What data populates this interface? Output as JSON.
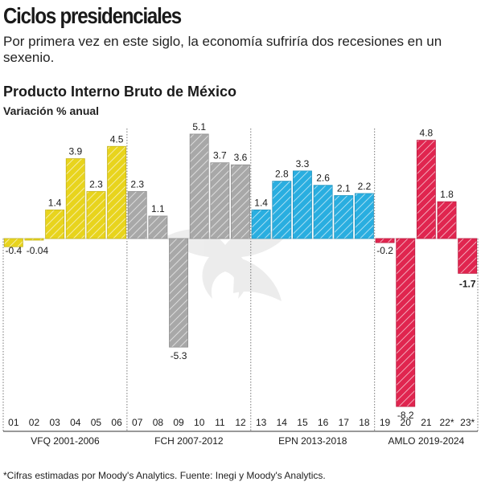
{
  "header": {
    "headline": "Ciclos presidenciales",
    "deck": "Por primera vez en este siglo, la economía sufriría dos recesiones en un sexenio."
  },
  "chart_data": {
    "type": "bar",
    "title": "Producto Interno Bruto de México",
    "subtitle": "Variación % anual",
    "categories": [
      "01",
      "02",
      "03",
      "04",
      "05",
      "06",
      "07",
      "08",
      "09",
      "10",
      "11",
      "12",
      "13",
      "14",
      "15",
      "16",
      "17",
      "18",
      "19",
      "20",
      "21",
      "22*",
      "23*"
    ],
    "values": [
      -0.4,
      -0.04,
      1.4,
      3.9,
      2.3,
      4.5,
      2.3,
      1.1,
      -5.3,
      5.1,
      3.7,
      3.6,
      1.4,
      2.8,
      3.3,
      2.6,
      2.1,
      2.2,
      -0.2,
      -8.2,
      4.8,
      1.8,
      -1.7
    ],
    "value_labels": [
      "-0.4",
      "-0.04",
      "1.4",
      "3.9",
      "2.3",
      "4.5",
      "2.3",
      "1.1",
      "-5.3",
      "5.1",
      "3.7",
      "3.6",
      "1.4",
      "2.8",
      "3.3",
      "2.6",
      "2.1",
      "2.2",
      "-0.2",
      "-8.2",
      "4.8",
      "1.8",
      "-1.7"
    ],
    "bold_labels": [
      false,
      false,
      false,
      false,
      false,
      false,
      false,
      false,
      false,
      false,
      false,
      false,
      false,
      false,
      false,
      false,
      false,
      false,
      false,
      false,
      false,
      false,
      true
    ],
    "groups": [
      {
        "name": "VFQ 2001-2006",
        "start": 0,
        "end": 5,
        "color": "#e8d41d"
      },
      {
        "name": "FCH 2007-2012",
        "start": 6,
        "end": 11,
        "color": "#a8a8a8"
      },
      {
        "name": "EPN 2013-2018",
        "start": 12,
        "end": 17,
        "color": "#29aee0"
      },
      {
        "name": "AMLO 2019-2024",
        "start": 18,
        "end": 22,
        "color": "#e0254f"
      }
    ],
    "ylim": [
      -8.2,
      5.1
    ],
    "grid": false,
    "legend": "none"
  },
  "footnote": "*Cifras estimadas por Moody's Analytics. Fuente: Inegi y Moody's Analytics."
}
